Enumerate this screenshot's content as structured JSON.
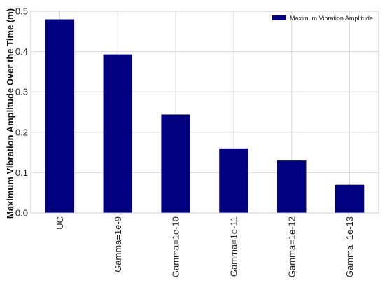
{
  "chart_data": {
    "type": "bar",
    "categories": [
      "UC",
      "Gamma=1e-9",
      "Gamma=1e-10",
      "Gamma=1e-11",
      "Gamma=1e-12",
      "Gamma=1e-13"
    ],
    "series": [
      {
        "name": "Maximum Vibration Amplitude",
        "values": [
          0.48,
          0.393,
          0.244,
          0.16,
          0.13,
          0.07
        ],
        "color": "#000080"
      }
    ],
    "title": "",
    "xlabel": "",
    "ylabel": "Maximum Vibration Amplitude Over the Time (m)",
    "ylim": [
      0,
      0.5
    ],
    "yticks": [
      0.0,
      0.1,
      0.2,
      0.3,
      0.4,
      0.5
    ],
    "ytick_labels": [
      "0.0",
      "0.1",
      "0.2",
      "0.3",
      "0.4",
      "0.5"
    ],
    "grid": true,
    "legend": {
      "position": "top-right"
    },
    "colors": {
      "bar": "#000080",
      "grid": "#d9d9d9",
      "frame": "#cccccc"
    }
  }
}
